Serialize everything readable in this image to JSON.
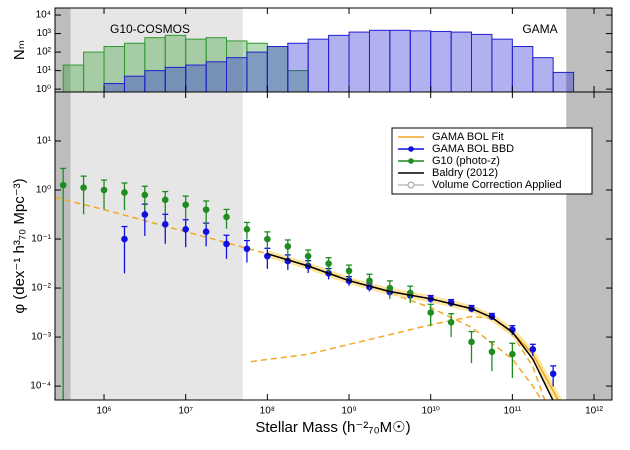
{
  "chart_data": [
    {
      "type": "histogram",
      "y_label": "Nₘ",
      "log_x": true,
      "log_y": true,
      "xlim": [
        251000.0,
        1660000000000.0
      ],
      "ylim": [
        0.7,
        24000
      ],
      "yticks": [
        {
          "value": 1,
          "label": "10⁰"
        },
        {
          "value": 10,
          "label": "10¹"
        },
        {
          "value": 100,
          "label": "10²"
        },
        {
          "value": 1000,
          "label": "10³"
        },
        {
          "value": 10000,
          "label": "10⁴"
        }
      ],
      "xticks": [
        1000000.0,
        10000000.0,
        100000000.0,
        1000000000.0,
        10000000000.0,
        100000000000.0,
        1000000000000.0
      ],
      "series": [
        {
          "label": "G10-COSMOS",
          "color": "#2e9a2e",
          "bins": [
            316000.0,
            562000.0,
            1000000.0,
            1780000.0,
            3160000.0,
            5620000.0,
            10000000.0,
            17800000.0,
            31600000.0,
            56200000.0,
            100000000.0,
            178000000.0,
            316000000.0
          ],
          "values": [
            20,
            100,
            200,
            300,
            600,
            800,
            500,
            600,
            400,
            300,
            200,
            10
          ]
        },
        {
          "label": "GAMA",
          "color": "#2020d0",
          "bins": [
            1000000.0,
            1780000.0,
            3160000.0,
            5620000.0,
            10000000.0,
            17800000.0,
            31600000.0,
            56200000.0,
            100000000.0,
            178000000.0,
            316000000.0,
            562000000.0,
            1000000000.0,
            1780000000.0,
            3160000000.0,
            5620000000.0,
            10000000000.0,
            17800000000.0,
            31600000000.0,
            56200000000.0,
            100000000000.0,
            178000000000.0,
            316000000000.0,
            562000000000.0
          ],
          "values": [
            2,
            5,
            10,
            15,
            20,
            30,
            50,
            100,
            200,
            300,
            500,
            800,
            1200,
            1500,
            1500,
            1400,
            1300,
            1200,
            900,
            500,
            200,
            50,
            8
          ]
        }
      ],
      "shaded_regions": [
        {
          "xlim": [
            251000.0,
            390000.0
          ],
          "color": "#bdbdbd"
        },
        {
          "xlim": [
            390000.0,
            50000000.0
          ],
          "color": "#e6e6e6"
        },
        {
          "xlim": [
            457000000000.0,
            1660000000000.0
          ],
          "color": "#bdbdbd"
        }
      ]
    },
    {
      "type": "scatter",
      "x_label": "Stellar Mass (h⁻²₇₀M☉)",
      "y_label": "φ (dex⁻¹ h³₇₀ Mpc⁻³)",
      "log_x": true,
      "log_y": true,
      "xlim": [
        251000.0,
        1660000000000.0
      ],
      "ylim": [
        5.2e-05,
        100
      ],
      "xticks": [
        {
          "value": 1000000.0,
          "label": "10⁶"
        },
        {
          "value": 10000000.0,
          "label": "10⁷"
        },
        {
          "value": 100000000.0,
          "label": "10⁸"
        },
        {
          "value": 1000000000.0,
          "label": "10⁹"
        },
        {
          "value": 10000000000.0,
          "label": "10¹⁰"
        },
        {
          "value": 100000000000.0,
          "label": "10¹¹"
        },
        {
          "value": 1000000000000.0,
          "label": "10¹²"
        }
      ],
      "yticks": [
        {
          "value": 0.0001,
          "label": "10⁻⁴"
        },
        {
          "value": 0.001,
          "label": "10⁻³"
        },
        {
          "value": 0.01,
          "label": "10⁻²"
        },
        {
          "value": 0.1,
          "label": "10⁻¹"
        },
        {
          "value": 1,
          "label": "10⁰"
        },
        {
          "value": 10,
          "label": "10¹"
        }
      ],
      "series": [
        {
          "name": "GAMA BOL Fit",
          "color": "#f5a623",
          "mode": "line",
          "x": [
            100000000.0,
            316000000.0,
            1000000000.0,
            3160000000.0,
            10000000000.0,
            31600000000.0,
            56200000000.0,
            100000000000.0,
            178000000000.0,
            316000000000.0,
            398000000000.0
          ],
          "values": [
            0.0501,
            0.0282,
            0.0141,
            0.00851,
            0.00603,
            0.0038,
            0.00251,
            0.00126,
            0.000447,
            7.94e-05,
            3.98e-05
          ]
        },
        {
          "name": "GAMA BOL BBD",
          "color": "#1010e0",
          "mode": "points",
          "x": [
            1780000.0,
            3160000.0,
            5620000.0,
            10000000.0,
            17800000.0,
            31600000.0,
            56200000.0,
            100000000.0,
            178000000.0,
            316000000.0,
            562000000.0,
            1000000000.0,
            1780000000.0,
            3160000000.0,
            5620000000.0,
            10000000000.0,
            17800000000.0,
            31600000000.0,
            56200000000.0,
            100000000000.0,
            178000000000.0,
            316000000000.0
          ],
          "values": [
            0.1,
            0.316,
            0.2,
            0.158,
            0.141,
            0.0794,
            0.0631,
            0.0447,
            0.0355,
            0.0282,
            0.02,
            0.0141,
            0.0105,
            0.0083,
            0.00708,
            0.00603,
            0.00501,
            0.0038,
            0.00263,
            0.00141,
            0.000562,
            0.000178
          ],
          "errors": [
            0.08,
            0.2,
            0.12,
            0.09,
            0.07,
            0.04,
            0.03,
            0.02,
            0.012,
            0.008,
            0.005,
            0.003,
            0.002,
            0.0015,
            0.0012,
            0.001,
            0.0008,
            0.0006,
            0.0004,
            0.0003,
            0.00015,
            8e-05
          ]
        },
        {
          "name": "G10 (photo-z)",
          "color": "#1e8c1e",
          "mode": "points",
          "x": [
            316000.0,
            562000.0,
            1000000.0,
            1780000.0,
            3160000.0,
            5620000.0,
            10000000.0,
            17800000.0,
            31600000.0,
            56200000.0,
            100000000.0,
            178000000.0,
            316000000.0,
            562000000.0,
            1000000000.0,
            1780000000.0,
            3160000000.0,
            5620000000.0,
            10000000000.0,
            17800000000.0,
            31600000000.0,
            56200000000.0,
            100000000000.0
          ],
          "values": [
            1.26,
            1.12,
            1.0,
            0.891,
            0.794,
            0.631,
            0.501,
            0.398,
            0.282,
            0.158,
            0.1,
            0.0708,
            0.0447,
            0.0316,
            0.0224,
            0.0141,
            0.01,
            0.00794,
            0.00316,
            0.002,
            0.000794,
            0.000501,
            0.000447
          ],
          "errors": [
            1.5,
            0.8,
            0.6,
            0.5,
            0.4,
            0.3,
            0.25,
            0.2,
            0.12,
            0.06,
            0.04,
            0.025,
            0.015,
            0.01,
            0.007,
            0.005,
            0.004,
            0.003,
            0.0015,
            0.001,
            0.0005,
            0.0003,
            0.0003
          ]
        },
        {
          "name": "Baldry (2012)",
          "color": "#000000",
          "mode": "line",
          "x": [
            100000000.0,
            316000000.0,
            1000000000.0,
            3160000000.0,
            10000000000.0,
            31600000000.0,
            56200000000.0,
            100000000000.0,
            178000000000.0,
            316000000000.0,
            398000000000.0
          ],
          "values": [
            0.0501,
            0.0282,
            0.0141,
            0.00851,
            0.00603,
            0.0038,
            0.00251,
            0.00126,
            0.000355,
            5.01e-05,
            3.98e-05
          ]
        }
      ],
      "components": [
        {
          "color": "#f5a623",
          "x": [
            251000.0,
            1000000.0,
            10000000.0,
            100000000.0,
            1000000000.0,
            10000000000.0,
            31600000000.0,
            100000000000.0,
            178000000000.0,
            251000000000.0
          ],
          "values": [
            0.708,
            0.398,
            0.141,
            0.0501,
            0.0158,
            0.00398,
            0.00158,
            0.000355,
            0.0001,
            3.98e-05
          ]
        },
        {
          "color": "#f5a623",
          "x": [
            63100000.0,
            316000000.0,
            1000000000.0,
            3160000000.0,
            10000000000.0,
            31600000000.0,
            56200000000.0,
            100000000000.0,
            178000000000.0,
            251000000000.0
          ],
          "values": [
            0.000316,
            0.000447,
            0.000708,
            0.00112,
            0.00178,
            0.00263,
            0.0024,
            0.00112,
            0.000251,
            5.01e-05
          ]
        }
      ],
      "legend_extra": {
        "name": "Volume Correction Applied",
        "color": "#999999"
      },
      "legend": "upper right",
      "shaded_regions": [
        {
          "xlim": [
            251000.0,
            390000.0
          ],
          "color": "#bdbdbd"
        },
        {
          "xlim": [
            390000.0,
            50000000.0
          ],
          "color": "#e6e6e6"
        },
        {
          "xlim": [
            457000000000.0,
            1660000000000.0
          ],
          "color": "#bdbdbd"
        }
      ]
    }
  ]
}
